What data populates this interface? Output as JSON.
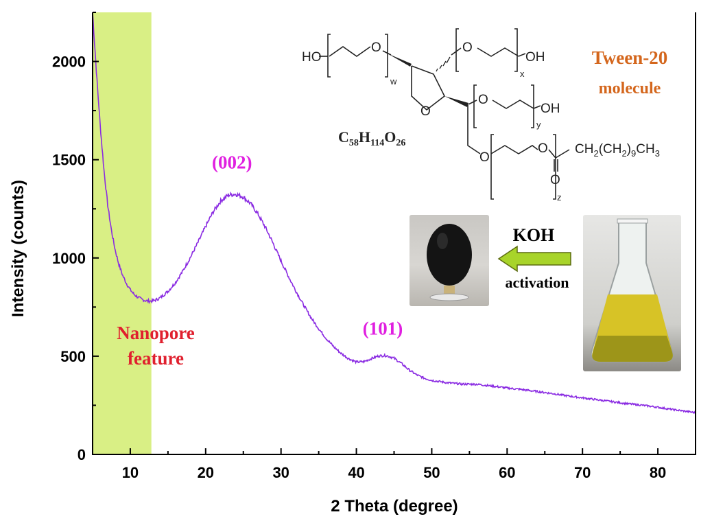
{
  "chart_data": {
    "type": "line",
    "xlabel": "2 Theta (degree)",
    "ylabel": "Intensity (counts)",
    "xlim": [
      5,
      85
    ],
    "ylim": [
      0,
      2250
    ],
    "xticks": [
      10,
      20,
      30,
      40,
      50,
      60,
      70,
      80
    ],
    "yticks": [
      0,
      500,
      1000,
      1500,
      2000
    ],
    "series_color": "#8a2be2",
    "highlight_band": {
      "x0": 5,
      "x1": 12.8,
      "color": "#d9ef85"
    },
    "points": [
      [
        5.0,
        2250
      ],
      [
        5.5,
        1950
      ],
      [
        6.0,
        1680
      ],
      [
        6.5,
        1450
      ],
      [
        7.0,
        1270
      ],
      [
        7.5,
        1140
      ],
      [
        8.0,
        1040
      ],
      [
        8.5,
        965
      ],
      [
        9.0,
        910
      ],
      [
        9.5,
        870
      ],
      [
        10.0,
        838
      ],
      [
        10.5,
        815
      ],
      [
        11.0,
        800
      ],
      [
        11.5,
        790
      ],
      [
        12.0,
        783
      ],
      [
        12.5,
        780
      ],
      [
        13.0,
        782
      ],
      [
        13.5,
        788
      ],
      [
        14.0,
        798
      ],
      [
        15.0,
        830
      ],
      [
        16.0,
        875
      ],
      [
        17.0,
        935
      ],
      [
        18.0,
        1005
      ],
      [
        19.0,
        1080
      ],
      [
        20.0,
        1160
      ],
      [
        21.0,
        1235
      ],
      [
        22.0,
        1290
      ],
      [
        23.0,
        1320
      ],
      [
        24.0,
        1325
      ],
      [
        25.0,
        1310
      ],
      [
        26.0,
        1275
      ],
      [
        27.0,
        1220
      ],
      [
        28.0,
        1150
      ],
      [
        29.0,
        1070
      ],
      [
        30.0,
        985
      ],
      [
        31.0,
        905
      ],
      [
        32.0,
        830
      ],
      [
        33.0,
        760
      ],
      [
        34.0,
        695
      ],
      [
        35.0,
        640
      ],
      [
        36.0,
        590
      ],
      [
        37.0,
        548
      ],
      [
        38.0,
        513
      ],
      [
        39.0,
        487
      ],
      [
        40.0,
        470
      ],
      [
        41.0,
        472
      ],
      [
        42.0,
        488
      ],
      [
        43.0,
        502
      ],
      [
        44.0,
        503
      ],
      [
        45.0,
        490
      ],
      [
        46.0,
        462
      ],
      [
        47.0,
        430
      ],
      [
        48.0,
        405
      ],
      [
        49.0,
        388
      ],
      [
        50.0,
        377
      ],
      [
        52.0,
        365
      ],
      [
        54.0,
        358
      ],
      [
        56.0,
        357
      ],
      [
        58.0,
        348
      ],
      [
        60.0,
        338
      ],
      [
        62.0,
        330
      ],
      [
        64.0,
        320
      ],
      [
        66.0,
        310
      ],
      [
        68.0,
        298
      ],
      [
        70.0,
        288
      ],
      [
        72.0,
        278
      ],
      [
        74.0,
        268
      ],
      [
        76.0,
        258
      ],
      [
        78.0,
        250
      ],
      [
        80.0,
        240
      ],
      [
        82.0,
        228
      ],
      [
        84.0,
        218
      ],
      [
        85.0,
        212
      ]
    ],
    "annotations": [
      {
        "text": "(002)",
        "x": 23.5,
        "y": 1455,
        "color": "#e01fe0"
      },
      {
        "text": "(101)",
        "x": 43.5,
        "y": 610,
        "color": "#e01fe0"
      }
    ]
  },
  "labels": {
    "nanopore_line1": "Nanopore",
    "nanopore_line2": "feature",
    "tween_line1": "Tween-20",
    "tween_line2": "molecule",
    "formula_C": "C",
    "formula_58": "58",
    "formula_H": "H",
    "formula_114": "114",
    "formula_O": "O",
    "formula_26": "26",
    "koh": "KOH",
    "activation": "activation"
  },
  "structure": {
    "ho_left": "HO",
    "o_w": "O",
    "sub_w": "w",
    "o_x": "O",
    "oh_x": "OH",
    "sub_x": "x",
    "ring_o": "O",
    "o_y": "O",
    "oh_y": "OH",
    "sub_y": "y",
    "o_z1": "O",
    "o_z2": "O",
    "carbonyl_o": "O",
    "chain": "CH2(CH2)9CH3",
    "sub_z": "z"
  },
  "colors": {
    "nanopore_text": "#e0202e",
    "tween_text": "#d4661c",
    "arrow_fill": "#a8d42a",
    "annotation": "#e01fe0"
  }
}
